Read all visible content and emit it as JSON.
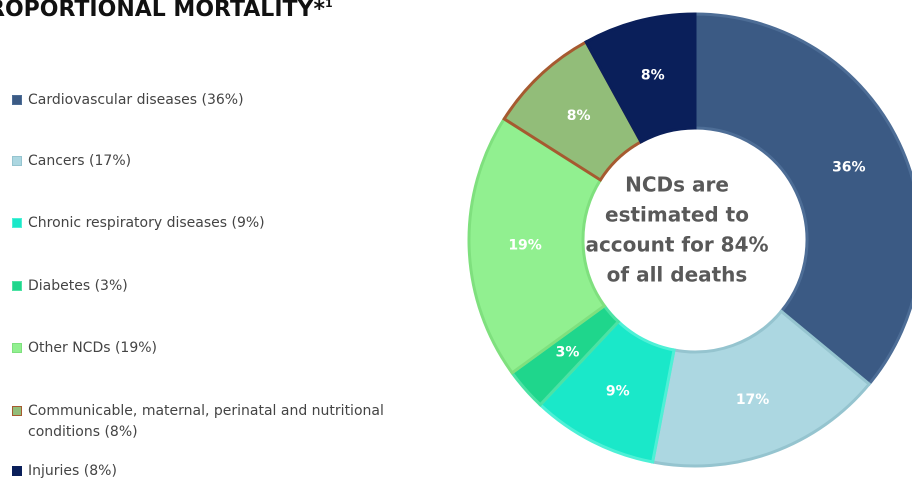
{
  "chart_data": {
    "type": "donut",
    "title": "ROPORTIONAL MORTALITY*",
    "title_superscript": "1",
    "center_text": [
      "NCDs are",
      "estimated to",
      "account for 84%",
      "of all deaths"
    ],
    "categories": [
      "Cardiovascular diseases (36%)",
      "Cancers (17%)",
      "Chronic respiratory diseases (9%)",
      "Diabetes (3%)",
      "Other NCDs (19%)",
      "Communicable, maternal, perinatal and nutritional conditions (8%)",
      "Injuries (8%)"
    ],
    "values": [
      36,
      17,
      9,
      3,
      19,
      8,
      8
    ],
    "value_labels": [
      "36%",
      "17%",
      "9%",
      "3%",
      "19%",
      "8%",
      "8%"
    ],
    "colors": [
      "#3b5a84",
      "#acd7e1",
      "#1ae8c9",
      "#1fd68c",
      "#91f090",
      "#92bd79",
      "#0a1f5a"
    ],
    "stroke_colors": [
      "#4d6d96",
      "#95c4cf",
      "#4ef0d6",
      "#4ce2a4",
      "#7fe07e",
      "#a65a30",
      "#0a1f5a"
    ]
  }
}
